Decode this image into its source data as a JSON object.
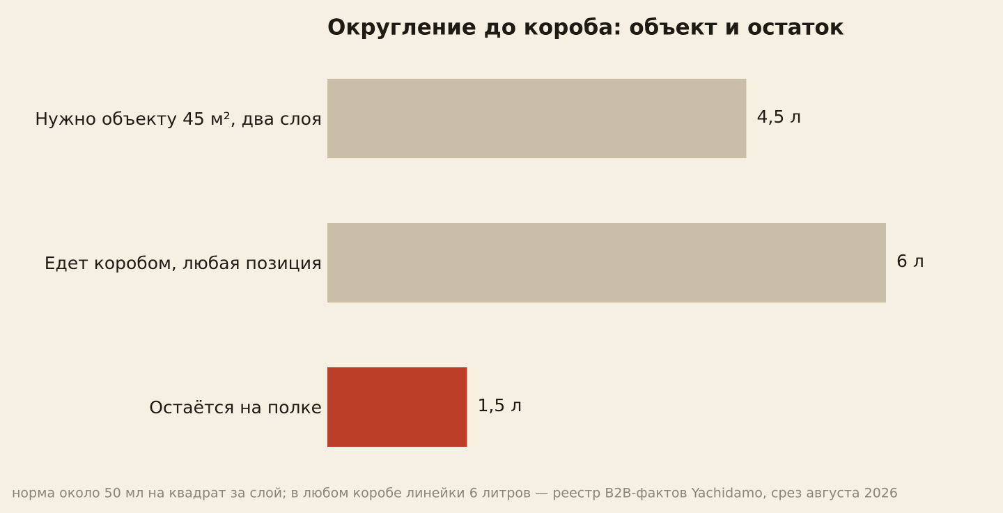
{
  "chart_data": {
    "type": "bar",
    "orientation": "horizontal",
    "title": "Округление до короба: объект и остаток",
    "categories": [
      "Нужно объекту 45 м², два слоя",
      "Едет коробом, любая позиция",
      "Остаётся на полке"
    ],
    "values": [
      4.5,
      6,
      1.5
    ],
    "value_labels": [
      "4,5 л",
      "6 л",
      "1,5 л"
    ],
    "colors": [
      "#c9bfa8",
      "#c9bfa8",
      "#bc3e27"
    ],
    "note": "норма около 50 мл на квадрат за слой; в любом коробе линейки 6 литров — реестр B2B-фактов Yachidamo, срез августа 2026"
  }
}
